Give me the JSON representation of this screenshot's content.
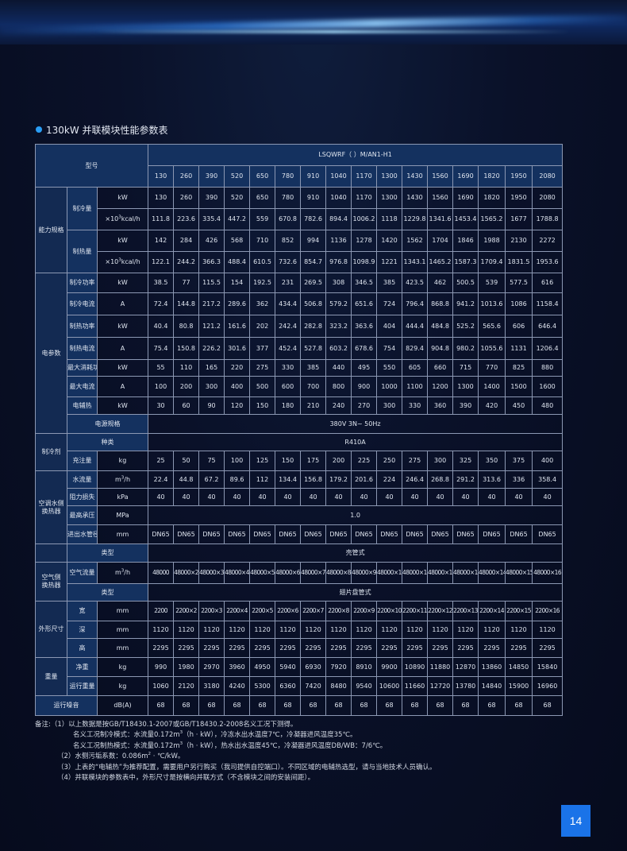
{
  "section_title": "130kW 并联模块性能参数表",
  "header": {
    "model_label": "型号",
    "series_label": "LSQWRF（ ）M/AN1-H1",
    "models": [
      "130",
      "260",
      "390",
      "520",
      "650",
      "780",
      "910",
      "1040",
      "1170",
      "1300",
      "1430",
      "1560",
      "1690",
      "1820",
      "1950",
      "2080"
    ]
  },
  "rows": {
    "capacity_group": "能力规格",
    "cooling_capacity": {
      "label": "制冷量",
      "unit_kw": "kW",
      "unit_kcal": "×10³kcal/h",
      "kw": [
        "130",
        "260",
        "390",
        "520",
        "650",
        "780",
        "910",
        "1040",
        "1170",
        "1300",
        "1430",
        "1560",
        "1690",
        "1820",
        "1950",
        "2080"
      ],
      "kcal": [
        "111.8",
        "223.6",
        "335.4",
        "447.2",
        "559",
        "670.8",
        "782.6",
        "894.4",
        "1006.2",
        "1118",
        "1229.8",
        "1341.6",
        "1453.4",
        "1565.2",
        "1677",
        "1788.8"
      ]
    },
    "heating_capacity": {
      "label": "制热量",
      "unit_kw": "kW",
      "unit_kcal": "×10³kcal/h",
      "kw": [
        "142",
        "284",
        "426",
        "568",
        "710",
        "852",
        "994",
        "1136",
        "1278",
        "1420",
        "1562",
        "1704",
        "1846",
        "1988",
        "2130",
        "2272"
      ],
      "kcal": [
        "122.1",
        "244.2",
        "366.3",
        "488.4",
        "610.5",
        "732.6",
        "854.7",
        "976.8",
        "1098.9",
        "1221",
        "1343.1",
        "1465.2",
        "1587.3",
        "1709.4",
        "1831.5",
        "1953.6"
      ]
    },
    "electrical_group": "电参数",
    "cooling_power": {
      "label": "制冷功率",
      "unit": "kW",
      "values": [
        "38.5",
        "77",
        "115.5",
        "154",
        "192.5",
        "231",
        "269.5",
        "308",
        "346.5",
        "385",
        "423.5",
        "462",
        "500.5",
        "539",
        "577.5",
        "616"
      ]
    },
    "cooling_current": {
      "label": "制冷电流",
      "unit": "A",
      "values": [
        "72.4",
        "144.8",
        "217.2",
        "289.6",
        "362",
        "434.4",
        "506.8",
        "579.2",
        "651.6",
        "724",
        "796.4",
        "868.8",
        "941.2",
        "1013.6",
        "1086",
        "1158.4"
      ]
    },
    "heating_power": {
      "label": "制热功率",
      "unit": "kW",
      "values": [
        "40.4",
        "80.8",
        "121.2",
        "161.6",
        "202",
        "242.4",
        "282.8",
        "323.2",
        "363.6",
        "404",
        "444.4",
        "484.8",
        "525.2",
        "565.6",
        "606",
        "646.4"
      ]
    },
    "heating_current": {
      "label": "制热电流",
      "unit": "A",
      "values": [
        "75.4",
        "150.8",
        "226.2",
        "301.6",
        "377",
        "452.4",
        "527.8",
        "603.2",
        "678.6",
        "754",
        "829.4",
        "904.8",
        "980.2",
        "1055.6",
        "1131",
        "1206.4"
      ]
    },
    "max_power": {
      "label": "最大消耗功率",
      "unit": "kW",
      "values": [
        "55",
        "110",
        "165",
        "220",
        "275",
        "330",
        "385",
        "440",
        "495",
        "550",
        "605",
        "660",
        "715",
        "770",
        "825",
        "880"
      ]
    },
    "max_current": {
      "label": "最大电流",
      "unit": "A",
      "values": [
        "100",
        "200",
        "300",
        "400",
        "500",
        "600",
        "700",
        "800",
        "900",
        "1000",
        "1100",
        "1200",
        "1300",
        "1400",
        "1500",
        "1600"
      ]
    },
    "electric_heater": {
      "label": "电辅热",
      "unit": "kW",
      "values": [
        "30",
        "60",
        "90",
        "120",
        "150",
        "180",
        "210",
        "240",
        "270",
        "300",
        "330",
        "360",
        "390",
        "420",
        "450",
        "480"
      ]
    },
    "power_supply": {
      "label": "电源规格",
      "value": "380V  3N~ 50Hz"
    },
    "refrigerant_group": "制冷剂",
    "refrigerant_type": {
      "label": "种类",
      "value": "R410A"
    },
    "refrigerant_charge": {
      "label": "充注量",
      "unit": "kg",
      "values": [
        "25",
        "50",
        "75",
        "100",
        "125",
        "150",
        "175",
        "200",
        "225",
        "250",
        "275",
        "300",
        "325",
        "350",
        "375",
        "400"
      ]
    },
    "water_hx_group": "空调水侧换热器",
    "water_flow": {
      "label": "水流量",
      "unit": "m³/h",
      "values": [
        "22.4",
        "44.8",
        "67.2",
        "89.6",
        "112",
        "134.4",
        "156.8",
        "179.2",
        "201.6",
        "224",
        "246.4",
        "268.8",
        "291.2",
        "313.6",
        "336",
        "358.4"
      ]
    },
    "pressure_loss": {
      "label": "阻力损失",
      "unit": "kPa",
      "values": [
        "40",
        "40",
        "40",
        "40",
        "40",
        "40",
        "40",
        "40",
        "40",
        "40",
        "40",
        "40",
        "40",
        "40",
        "40",
        "40"
      ]
    },
    "max_pressure": {
      "label": "最高承压",
      "unit": "MPa",
      "value": "1.0"
    },
    "pipe_diameter": {
      "label": "进出水管径",
      "unit": "mm",
      "values": [
        "DN65",
        "DN65",
        "DN65",
        "DN65",
        "DN65",
        "DN65",
        "DN65",
        "DN65",
        "DN65",
        "DN65",
        "DN65",
        "DN65",
        "DN65",
        "DN65",
        "DN65",
        "DN65"
      ]
    },
    "water_hx_type": {
      "label": "类型",
      "value": "壳管式"
    },
    "air_hx_group": "空气侧换热器",
    "air_flow": {
      "label": "空气流量",
      "unit": "m³/h",
      "values": [
        "48000",
        "48000×2",
        "48000×3",
        "48000×4",
        "48000×5",
        "48000×6",
        "48000×7",
        "48000×8",
        "48000×9",
        "48000×10",
        "48000×11",
        "48000×12",
        "48000×13",
        "48000×14",
        "48000×15",
        "48000×16"
      ]
    },
    "air_hx_type": {
      "label": "类型",
      "value": "翅片盘管式"
    },
    "dimensions_group": "外形尺寸",
    "width": {
      "label": "宽",
      "unit": "mm",
      "values": [
        "2200",
        "2200×2",
        "2200×3",
        "2200×4",
        "2200×5",
        "2200×6",
        "2200×7",
        "2200×8",
        "2200×9",
        "2200×10",
        "2200×11",
        "2200×12",
        "2200×13",
        "2200×14",
        "2200×15",
        "2200×16"
      ]
    },
    "depth": {
      "label": "深",
      "unit": "mm",
      "values": [
        "1120",
        "1120",
        "1120",
        "1120",
        "1120",
        "1120",
        "1120",
        "1120",
        "1120",
        "1120",
        "1120",
        "1120",
        "1120",
        "1120",
        "1120",
        "1120"
      ]
    },
    "height": {
      "label": "高",
      "unit": "mm",
      "values": [
        "2295",
        "2295",
        "2295",
        "2295",
        "2295",
        "2295",
        "2295",
        "2295",
        "2295",
        "2295",
        "2295",
        "2295",
        "2295",
        "2295",
        "2295",
        "2295"
      ]
    },
    "weight_group": "重量",
    "net_weight": {
      "label": "净重",
      "unit": "kg",
      "values": [
        "990",
        "1980",
        "2970",
        "3960",
        "4950",
        "5940",
        "6930",
        "7920",
        "8910",
        "9900",
        "10890",
        "11880",
        "12870",
        "13860",
        "14850",
        "15840"
      ]
    },
    "operating_weight": {
      "label": "运行重量",
      "unit": "kg",
      "values": [
        "1060",
        "2120",
        "3180",
        "4240",
        "5300",
        "6360",
        "7420",
        "8480",
        "9540",
        "10600",
        "11660",
        "12720",
        "13780",
        "14840",
        "15900",
        "16960"
      ]
    },
    "noise": {
      "label": "运行噪音",
      "unit": "dB(A)",
      "values": [
        "68",
        "68",
        "68",
        "68",
        "68",
        "68",
        "68",
        "68",
        "68",
        "68",
        "68",
        "68",
        "68",
        "68",
        "68",
        "68"
      ]
    }
  },
  "notes": [
    "备注:（1）以上数据是按GB/T18430.1-2007或GB/T18430.2-2008名义工况下测得。",
    "名义工况制冷模式：水流量0.172m³（h · kW），冷冻水出水温度7℃，冷凝器进风温度35℃。",
    "名义工况制热模式：水流量0.172m³（h · kW），热水出水温度45℃，冷凝器进风温度DB/WB：7/6℃。",
    "（2）水侧污垢系数：0.086m² · ℃/kW。",
    "（3）上表的“电辅热”为推荐配置，需要用户另行购买（我司提供自控端口）。不同区域的电辅热选型，请与当地技术人员确认。",
    "（4）并联模块的参数表中，外形尺寸是按横向并联方式（不含模块之间的安装间距）。"
  ],
  "page_number": "14"
}
